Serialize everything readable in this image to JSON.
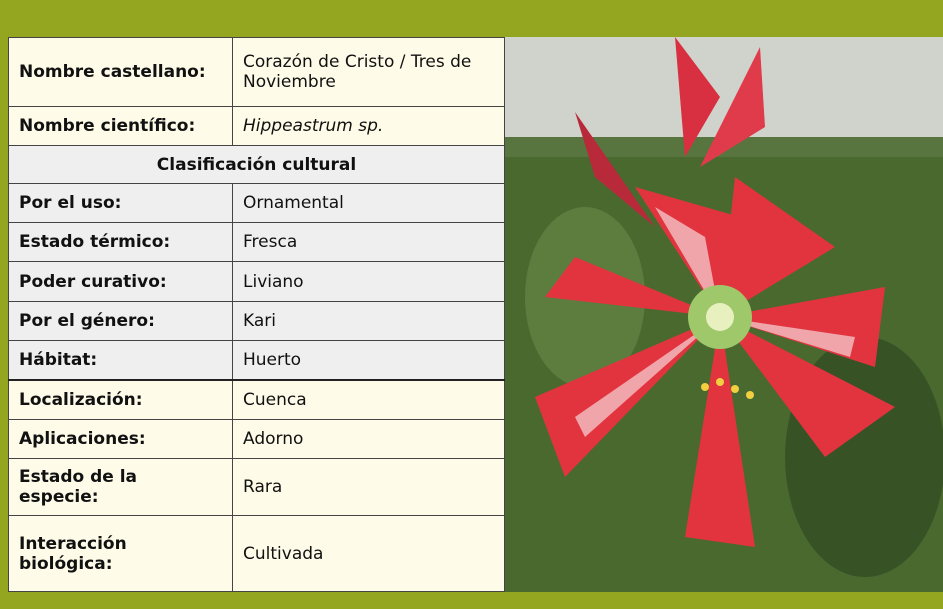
{
  "table": {
    "identity_rows": [
      [
        "Nombre castellano:",
        "Corazón de Cristo / Tres de Noviembre"
      ],
      [
        "Nombre científico:",
        "Hippeastrum sp."
      ]
    ],
    "section_title": "Clasificación cultural",
    "section_rows": [
      [
        "Por el uso:",
        "Ornamental"
      ],
      [
        "Estado térmico:",
        "Fresca"
      ],
      [
        "Poder curativo:",
        "Liviano"
      ],
      [
        "Por el género:",
        "Kari"
      ],
      [
        "Hábitat:",
        "Huerto"
      ]
    ],
    "extra_rows": [
      [
        "Localización:",
        "Cuenca"
      ],
      [
        "Aplicaciones:",
        "Adorno"
      ],
      [
        "Estado de la especie:",
        "Rara"
      ],
      [
        "Interacción biológica:",
        "Cultivada"
      ]
    ]
  }
}
